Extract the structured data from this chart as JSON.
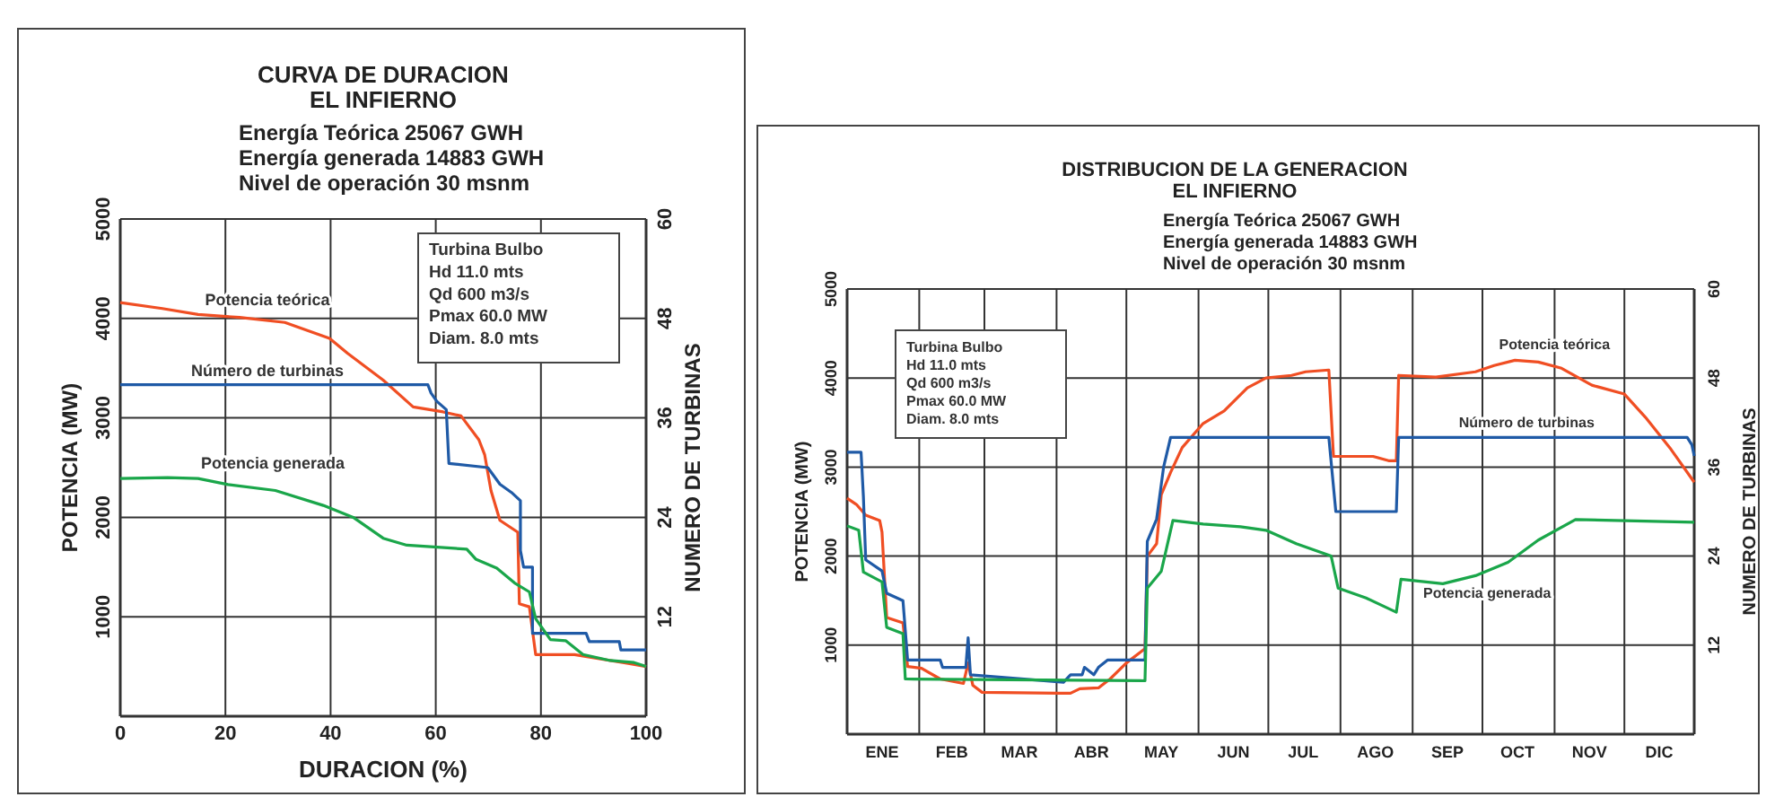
{
  "chart_data": [
    {
      "type": "line",
      "title": "CURVA DE DURACION\nEL INFIERNO",
      "subtitle": "Energía Teórica 25067 GWH\nEnergía generada 14883 GWH\nNivel de operación 30 msnm",
      "xlabel": "DURACION (%)",
      "ylabel": "POTENCIA (MW)",
      "y2label": "NUMERO DE TURBINAS",
      "annotations": [
        "Turbina Bulbo",
        "Hd 11.0 mts",
        "Qd 600 m3/s",
        "Pmax 60.0 MW",
        "Diam. 8.0 mts"
      ],
      "xlim": [
        0,
        100
      ],
      "xticks": [
        0,
        20,
        40,
        60,
        80,
        100
      ],
      "ylim": [
        0,
        5000
      ],
      "yticks": [
        1000,
        2000,
        3000,
        4000,
        5000
      ],
      "y2lim": [
        0,
        60
      ],
      "y2ticks": [
        12,
        24,
        36,
        48,
        60
      ],
      "grid": true,
      "marker": "none",
      "line_style": "solid",
      "series": [
        {
          "name": "Potencia teórica",
          "color": "#f04e23",
          "x": [
            0,
            8,
            14.8,
            22.7,
            31.3,
            39.8,
            43.2,
            50,
            55.7,
            61.4,
            64.8,
            68.2,
            69.3,
            70.5,
            72.2,
            75.6,
            75.9,
            77.8,
            79,
            86.4,
            96.6,
            100
          ],
          "values": [
            4160,
            4100,
            4040,
            4010,
            3960,
            3800,
            3650,
            3380,
            3110,
            3060,
            3020,
            2780,
            2630,
            2270,
            1970,
            1850,
            1130,
            1100,
            620,
            620,
            530,
            500
          ]
        },
        {
          "name": "Número de turbinas",
          "color": "#1f5aa6",
          "axis": "y2",
          "x": [
            0,
            58.5,
            59.1,
            60.2,
            62,
            62.5,
            69.9,
            72.2,
            74.4,
            76.1,
            76.1,
            76.7,
            78.4,
            78.4,
            88.6,
            89.2,
            94.9,
            95.2,
            100
          ],
          "values": [
            40,
            40,
            39,
            38,
            37,
            30.5,
            30,
            28,
            27,
            26,
            20,
            18,
            18,
            10,
            10,
            9,
            9,
            8,
            8
          ]
        },
        {
          "name": "Potencia generada",
          "color": "#1aa64a",
          "x": [
            0,
            9,
            14.8,
            20.5,
            29.5,
            38.6,
            44.3,
            50,
            54.5,
            65.9,
            67.6,
            71.6,
            75,
            77.8,
            79,
            81.8,
            84.7,
            88,
            93.2,
            97.7,
            100
          ],
          "values": [
            2390,
            2400,
            2390,
            2330,
            2270,
            2120,
            2000,
            1790,
            1720,
            1680,
            1580,
            1490,
            1340,
            1250,
            980,
            770,
            760,
            620,
            560,
            540,
            500
          ]
        }
      ]
    },
    {
      "type": "line",
      "title": "DISTRIBUCION DE LA GENERACION\nEL INFIERNO",
      "subtitle": "Energía Teórica 25067 GWH\nEnergía generada 14883 GWH\nNivel de operación 30 msnm",
      "ylabel": "POTENCIA (MW)",
      "y2label": "NUMERO DE TURBINAS",
      "annotations": [
        "Turbina Bulbo",
        "Hd 11.0 mts",
        "Qd 600 m3/s",
        "Pmax 60.0 MW",
        "Diam. 8.0 mts"
      ],
      "xlim": [
        "--01-01",
        "--12-31"
      ],
      "xticks": [
        {
          "value": "--01-16",
          "label": "ENE"
        },
        {
          "value": "--02-01",
          "label": null
        },
        {
          "value": "--02-15",
          "label": "FEB"
        },
        {
          "value": "--03-01",
          "label": null
        },
        {
          "value": "--03-16",
          "label": "MAR"
        },
        {
          "value": "--04-01",
          "label": null
        },
        {
          "value": "--04-16",
          "label": "ABR"
        },
        {
          "value": "--05-01",
          "label": null
        },
        {
          "value": "--05-16",
          "label": "MAY"
        },
        {
          "value": "--06-01",
          "label": null
        },
        {
          "value": "--06-16",
          "label": "JUN"
        },
        {
          "value": "--07-01",
          "label": null
        },
        {
          "value": "--07-16",
          "label": "JUL"
        },
        {
          "value": "--08-01",
          "label": null
        },
        {
          "value": "--08-16",
          "label": "AGO"
        },
        {
          "value": "--09-01",
          "label": null
        },
        {
          "value": "--09-16",
          "label": "SEP"
        },
        {
          "value": "--10-01",
          "label": null
        },
        {
          "value": "--10-16",
          "label": "OCT"
        },
        {
          "value": "--11-01",
          "label": null
        },
        {
          "value": "--11-16",
          "label": "NOV"
        },
        {
          "value": "--12-01",
          "label": null
        },
        {
          "value": "--12-16",
          "label": "DIC"
        }
      ],
      "ylim": [
        0,
        5000
      ],
      "yticks": [
        1000,
        2000,
        3000,
        4000,
        5000
      ],
      "y2lim": [
        0,
        60
      ],
      "y2ticks": [
        12,
        24,
        36,
        48,
        60
      ],
      "grid": true,
      "marker": "none",
      "line_style": "solid",
      "series": [
        {
          "name": "Potencia teórica",
          "color": "#f04e23",
          "x": [
            "--01-01",
            "--01-05",
            "--01-09",
            "--01-15",
            "--01-16",
            "--01-18",
            "--01-25",
            "--01-27",
            "--02-02",
            "--02-10",
            "--02-20",
            "--02-22",
            "--02-24",
            "--02-28",
            "--04-02",
            "--04-07",
            "--04-11",
            "--04-19",
            "--04-24",
            "--05-01",
            "--05-09",
            "--05-10",
            "--05-14",
            "--05-16",
            "--05-20",
            "--05-25",
            "--06-03",
            "--06-12",
            "--06-22",
            "--06-30",
            "--07-11",
            "--07-17",
            "--07-27",
            "--07-29",
            "--08-15",
            "--08-22",
            "--08-25",
            "--08-26",
            "--09-11",
            "--09-28",
            "--10-06",
            "--10-15",
            "--10-25",
            "--11-04",
            "--11-17",
            "--12-01",
            "--12-10",
            "--12-21",
            "--12-31"
          ],
          "values": [
            2650,
            2580,
            2460,
            2400,
            2270,
            1310,
            1250,
            760,
            740,
            620,
            570,
            800,
            550,
            470,
            460,
            460,
            510,
            520,
            620,
            800,
            960,
            2000,
            2140,
            2690,
            2940,
            3220,
            3490,
            3630,
            3890,
            4000,
            4030,
            4070,
            4090,
            3120,
            3120,
            3070,
            3070,
            4030,
            4010,
            4070,
            4140,
            4200,
            4180,
            4110,
            3920,
            3820,
            3560,
            3200,
            2830
          ]
        },
        {
          "name": "Número de turbinas",
          "color": "#1f5aa6",
          "axis": "y2",
          "x": [
            "--01-01",
            "--01-07",
            "--01-08",
            "--01-09",
            "--01-16",
            "--01-18",
            "--01-25",
            "--01-27",
            "--02-10",
            "--02-11",
            "--02-21",
            "--02-22",
            "--02-23",
            "--04-04",
            "--04-07",
            "--04-12",
            "--04-13",
            "--04-17",
            "--04-19",
            "--04-23",
            "--05-09",
            "--05-10",
            "--05-14",
            "--05-17",
            "--05-20",
            "--07-27",
            "--07-30",
            "--08-25",
            "--08-26",
            "--12-28",
            "--12-30",
            "--12-31"
          ],
          "values": [
            38,
            38,
            32,
            23.5,
            22,
            19,
            18,
            10,
            10,
            9,
            9,
            13,
            8,
            7,
            8,
            8,
            9,
            8,
            9,
            10,
            10,
            26,
            29,
            36,
            40,
            40,
            30,
            30,
            40,
            40,
            39,
            37.5
          ]
        },
        {
          "name": "Potencia generada",
          "color": "#1aa64a",
          "x": [
            "--01-01",
            "--01-06",
            "--01-08",
            "--01-16",
            "--01-18",
            "--01-25",
            "--01-26",
            "--05-09",
            "--05-10",
            "--05-16",
            "--05-21",
            "--06-03",
            "--06-19",
            "--06-30",
            "--07-13",
            "--07-28",
            "--07-31",
            "--08-12",
            "--08-25",
            "--08-27",
            "--09-14",
            "--09-28",
            "--10-12",
            "--10-25",
            "--11-10",
            "--12-31"
          ],
          "values": [
            2340,
            2290,
            1820,
            1710,
            1200,
            1130,
            620,
            600,
            1640,
            1830,
            2400,
            2360,
            2330,
            2290,
            2140,
            2000,
            1640,
            1530,
            1370,
            1740,
            1690,
            1780,
            1930,
            2180,
            2410,
            2380
          ]
        }
      ]
    }
  ]
}
